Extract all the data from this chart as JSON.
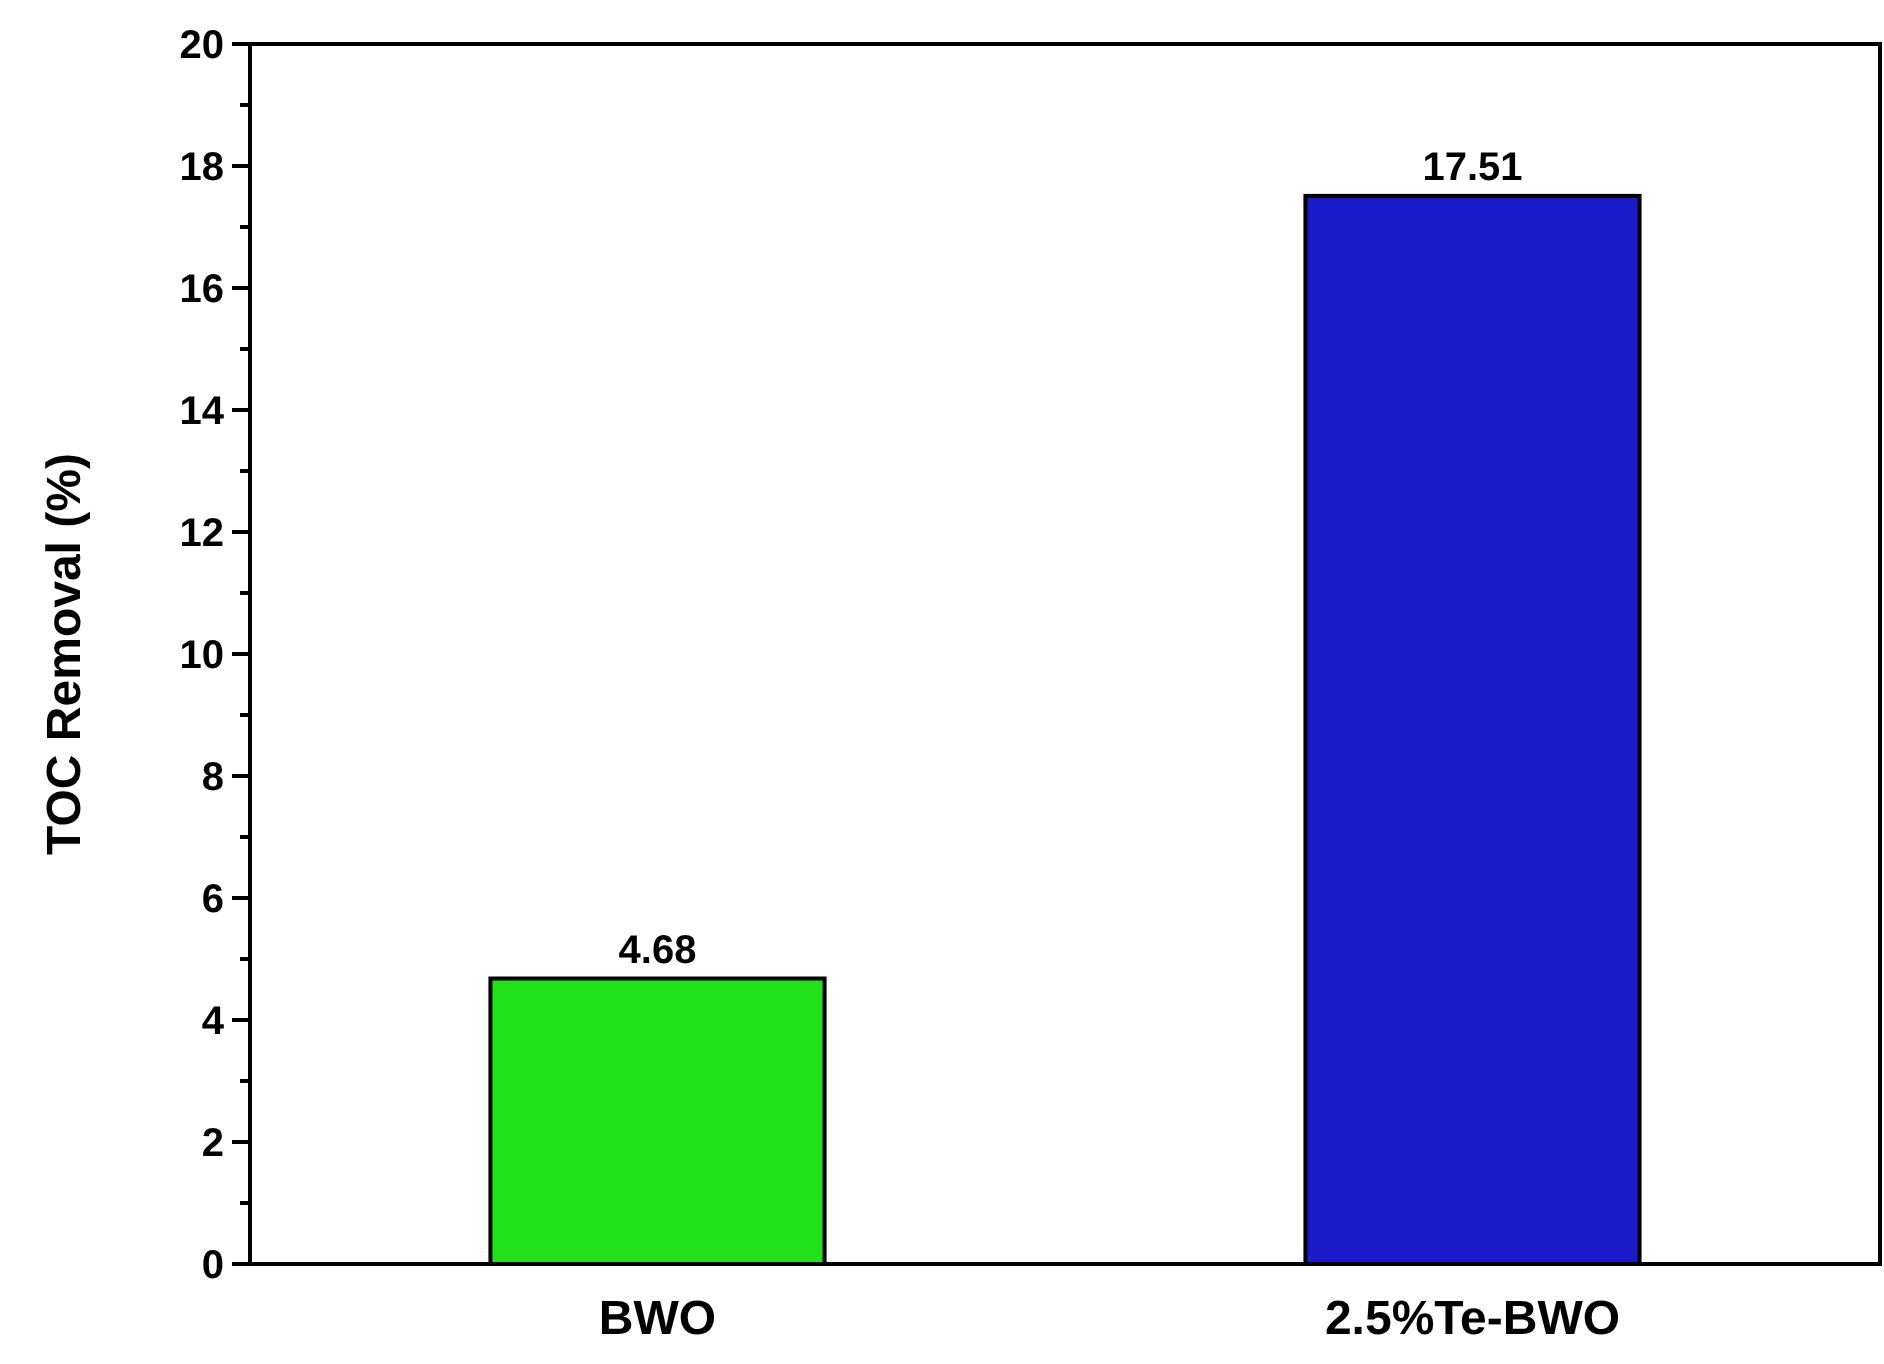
{
  "chart_data": {
    "type": "bar",
    "ylabel": "TOC Removal (%)",
    "categories": [
      "BWO",
      "2.5%Te-BWO"
    ],
    "values": [
      4.68,
      17.51
    ],
    "colors": [
      "#22e01a",
      "#1a1ac8"
    ],
    "ylim": [
      0,
      20
    ],
    "yticks": [
      0,
      {
        "value": 1,
        "label": null
      },
      2,
      {
        "value": 3,
        "label": null
      },
      4,
      {
        "value": 5,
        "label": null
      },
      6,
      {
        "value": 7,
        "label": null
      },
      8,
      {
        "value": 9,
        "label": null
      },
      10,
      {
        "value": 11,
        "label": null
      },
      12,
      {
        "value": 13,
        "label": null
      },
      14,
      {
        "value": 15,
        "label": null
      },
      16,
      {
        "value": 17,
        "label": null
      },
      18,
      {
        "value": 19,
        "label": null
      },
      20
    ],
    "data_labels": true,
    "grid": false
  }
}
